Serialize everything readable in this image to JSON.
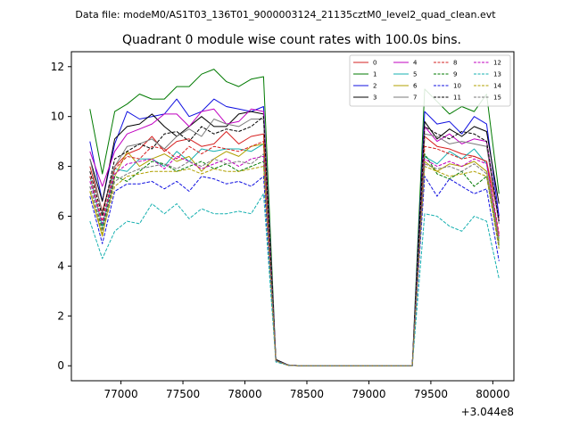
{
  "header": {
    "data_file": "Data file: modeM0/AS1T03_136T01_9000003124_21135cztM0_level2_quad_clean.evt"
  },
  "chart_data": {
    "type": "line",
    "title": "Quadrant 0 module wise count rates with 100.0s bins.",
    "xlabel": "",
    "ylabel": "",
    "x_offset_label": "+3.044e8",
    "xlim": [
      76600,
      80170
    ],
    "ylim": [
      -0.6,
      12.6
    ],
    "xticks": [
      77000,
      77500,
      78000,
      78500,
      79000,
      79500,
      80000
    ],
    "yticks": [
      0,
      2,
      4,
      6,
      8,
      10,
      12
    ],
    "x": [
      76750,
      76850,
      76950,
      77050,
      77150,
      77250,
      77350,
      77450,
      77550,
      77650,
      77750,
      77850,
      77950,
      78050,
      78150,
      78250,
      78350,
      78450,
      78550,
      78650,
      78750,
      78850,
      78950,
      79050,
      79150,
      79250,
      79350,
      79450,
      79550,
      79650,
      79750,
      79850,
      79950,
      80050
    ],
    "legend_position": "top-right",
    "series": [
      {
        "name": "0",
        "color": "#d62020",
        "dash": "solid",
        "values": [
          8.0,
          6.2,
          8.0,
          8.5,
          8.7,
          9.2,
          8.6,
          9.0,
          9.1,
          8.8,
          8.9,
          9.4,
          8.9,
          9.2,
          9.3,
          0.2,
          0.02,
          0.0,
          0.0,
          0.0,
          0.0,
          0.0,
          0.0,
          0.0,
          0.0,
          0.0,
          0.0,
          9.2,
          8.8,
          8.7,
          8.5,
          8.4,
          8.2,
          5.9
        ]
      },
      {
        "name": "1",
        "color": "#007a00",
        "dash": "solid",
        "values": [
          10.3,
          7.7,
          10.2,
          10.5,
          10.9,
          10.7,
          10.7,
          11.2,
          11.2,
          11.7,
          11.9,
          11.4,
          11.2,
          11.5,
          11.6,
          0.25,
          0.03,
          0.0,
          0.0,
          0.0,
          0.0,
          0.0,
          0.0,
          0.0,
          0.0,
          0.0,
          0.0,
          11.1,
          10.6,
          10.1,
          10.4,
          10.2,
          10.9,
          6.9
        ]
      },
      {
        "name": "2",
        "color": "#1010e0",
        "dash": "solid",
        "values": [
          9.0,
          6.6,
          8.9,
          10.2,
          9.9,
          10.0,
          10.1,
          10.7,
          10.0,
          10.2,
          10.7,
          10.4,
          10.3,
          10.2,
          10.4,
          0.25,
          0.03,
          0.0,
          0.0,
          0.0,
          0.0,
          0.0,
          0.0,
          0.0,
          0.0,
          0.0,
          0.0,
          10.2,
          9.7,
          9.8,
          9.3,
          10.0,
          9.7,
          6.0
        ]
      },
      {
        "name": "3",
        "color": "#000000",
        "dash": "solid",
        "values": [
          8.3,
          6.6,
          9.1,
          9.6,
          9.7,
          10.1,
          9.6,
          9.2,
          9.6,
          10.0,
          9.6,
          9.6,
          10.1,
          10.2,
          10.1,
          0.25,
          0.03,
          0.0,
          0.0,
          0.0,
          0.0,
          0.0,
          0.0,
          0.0,
          0.0,
          0.0,
          0.0,
          9.8,
          9.1,
          9.5,
          9.2,
          9.6,
          9.4,
          6.5
        ]
      },
      {
        "name": "4",
        "color": "#c000c0",
        "dash": "solid",
        "values": [
          8.6,
          7.2,
          8.6,
          9.3,
          9.5,
          9.7,
          10.1,
          10.1,
          9.6,
          10.2,
          10.3,
          9.7,
          9.8,
          10.3,
          10.2,
          0.2,
          0.03,
          0.0,
          0.0,
          0.0,
          0.0,
          0.0,
          0.0,
          0.0,
          0.0,
          0.0,
          0.0,
          9.6,
          9.0,
          9.3,
          8.9,
          9.1,
          9.0,
          5.8
        ]
      },
      {
        "name": "5",
        "color": "#17b0b0",
        "dash": "solid",
        "values": [
          7.6,
          5.6,
          7.9,
          7.8,
          8.3,
          8.3,
          8.0,
          8.6,
          8.2,
          8.7,
          8.6,
          8.7,
          8.7,
          8.6,
          8.9,
          0.2,
          0.02,
          0.0,
          0.0,
          0.0,
          0.0,
          0.0,
          0.0,
          0.0,
          0.0,
          0.0,
          0.0,
          8.4,
          8.1,
          8.6,
          8.3,
          8.7,
          8.1,
          5.1
        ]
      },
      {
        "name": "6",
        "color": "#b0a000",
        "dash": "solid",
        "values": [
          7.0,
          5.2,
          7.6,
          8.6,
          8.0,
          8.3,
          8.5,
          8.2,
          8.4,
          7.8,
          8.3,
          8.6,
          8.4,
          8.8,
          8.9,
          0.2,
          0.02,
          0.0,
          0.0,
          0.0,
          0.0,
          0.0,
          0.0,
          0.0,
          0.0,
          0.0,
          0.0,
          8.2,
          7.8,
          8.1,
          8.0,
          8.2,
          7.8,
          5.0
        ]
      },
      {
        "name": "7",
        "color": "#7a7a7a",
        "dash": "solid",
        "values": [
          8.3,
          6.1,
          8.0,
          8.8,
          8.9,
          9.1,
          8.7,
          9.2,
          9.5,
          9.2,
          9.9,
          9.7,
          9.6,
          9.9,
          9.9,
          0.2,
          0.03,
          0.0,
          0.0,
          0.0,
          0.0,
          0.0,
          0.0,
          0.0,
          0.0,
          0.0,
          0.0,
          9.3,
          9.2,
          8.9,
          9.0,
          8.9,
          8.8,
          5.7
        ]
      },
      {
        "name": "8",
        "color": "#d62020",
        "dash": "dashed",
        "values": [
          7.6,
          5.8,
          7.9,
          8.4,
          8.3,
          8.8,
          8.7,
          8.3,
          8.8,
          8.5,
          8.8,
          8.7,
          8.6,
          8.8,
          9.0,
          0.2,
          0.02,
          0.0,
          0.0,
          0.0,
          0.0,
          0.0,
          0.0,
          0.0,
          0.0,
          0.0,
          0.0,
          8.8,
          8.7,
          8.5,
          8.3,
          8.4,
          8.2,
          5.3
        ]
      },
      {
        "name": "9",
        "color": "#007a00",
        "dash": "dashed",
        "values": [
          7.2,
          5.5,
          7.6,
          7.4,
          7.8,
          8.2,
          8.1,
          7.8,
          8.0,
          8.2,
          7.9,
          8.1,
          7.8,
          8.0,
          8.2,
          0.2,
          0.02,
          0.0,
          0.0,
          0.0,
          0.0,
          0.0,
          0.0,
          0.0,
          0.0,
          0.0,
          0.0,
          8.5,
          7.7,
          7.5,
          7.8,
          7.2,
          7.6,
          4.8
        ]
      },
      {
        "name": "10",
        "color": "#1010e0",
        "dash": "dashed",
        "values": [
          6.8,
          4.9,
          7.0,
          7.3,
          7.3,
          7.4,
          7.1,
          7.4,
          7.0,
          7.6,
          7.5,
          7.3,
          7.4,
          7.2,
          7.6,
          0.2,
          0.02,
          0.0,
          0.0,
          0.0,
          0.0,
          0.0,
          0.0,
          0.0,
          0.0,
          0.0,
          0.0,
          7.6,
          6.8,
          7.5,
          7.2,
          6.9,
          7.1,
          4.2
        ]
      },
      {
        "name": "11",
        "color": "#000000",
        "dash": "dashed",
        "values": [
          7.8,
          6.0,
          8.3,
          8.6,
          8.9,
          8.7,
          9.3,
          9.4,
          9.0,
          9.6,
          9.3,
          9.5,
          9.4,
          9.6,
          10.0,
          0.2,
          0.03,
          0.0,
          0.0,
          0.0,
          0.0,
          0.0,
          0.0,
          0.0,
          0.0,
          0.0,
          0.0,
          9.6,
          9.3,
          9.1,
          9.4,
          9.3,
          9.0,
          5.8
        ]
      },
      {
        "name": "12",
        "color": "#c000c0",
        "dash": "dashed",
        "values": [
          7.4,
          5.7,
          7.7,
          8.1,
          8.2,
          8.3,
          7.9,
          8.4,
          8.2,
          7.9,
          8.1,
          8.3,
          8.0,
          8.3,
          8.4,
          0.2,
          0.02,
          0.0,
          0.0,
          0.0,
          0.0,
          0.0,
          0.0,
          0.0,
          0.0,
          0.0,
          0.0,
          8.3,
          8.0,
          8.2,
          8.0,
          8.3,
          8.1,
          5.2
        ]
      },
      {
        "name": "13",
        "color": "#17b0b0",
        "dash": "dashed",
        "values": [
          5.8,
          4.3,
          5.4,
          5.8,
          5.7,
          6.5,
          6.1,
          6.5,
          5.9,
          6.3,
          6.1,
          6.1,
          6.2,
          6.1,
          6.9,
          0.15,
          0.02,
          0.0,
          0.0,
          0.0,
          0.0,
          0.0,
          0.0,
          0.0,
          0.0,
          0.0,
          0.0,
          6.1,
          6.0,
          5.6,
          5.4,
          6.0,
          5.8,
          3.5
        ]
      },
      {
        "name": "14",
        "color": "#b0a000",
        "dash": "dashed",
        "values": [
          7.0,
          5.3,
          7.2,
          7.6,
          7.7,
          7.8,
          7.8,
          7.8,
          7.9,
          7.7,
          7.9,
          7.8,
          7.8,
          7.9,
          8.0,
          0.2,
          0.02,
          0.0,
          0.0,
          0.0,
          0.0,
          0.0,
          0.0,
          0.0,
          0.0,
          0.0,
          0.0,
          8.0,
          7.8,
          7.6,
          7.7,
          7.8,
          7.6,
          4.7
        ]
      },
      {
        "name": "15",
        "color": "#7a7a7a",
        "dash": "dashed",
        "values": [
          7.2,
          5.4,
          7.4,
          7.7,
          7.9,
          8.0,
          8.1,
          7.9,
          8.2,
          8.0,
          8.3,
          8.1,
          8.2,
          8.1,
          8.5,
          0.2,
          0.02,
          0.0,
          0.0,
          0.0,
          0.0,
          0.0,
          0.0,
          0.0,
          0.0,
          0.0,
          0.0,
          8.1,
          7.9,
          8.0,
          7.8,
          8.1,
          7.7,
          4.9
        ]
      }
    ]
  }
}
